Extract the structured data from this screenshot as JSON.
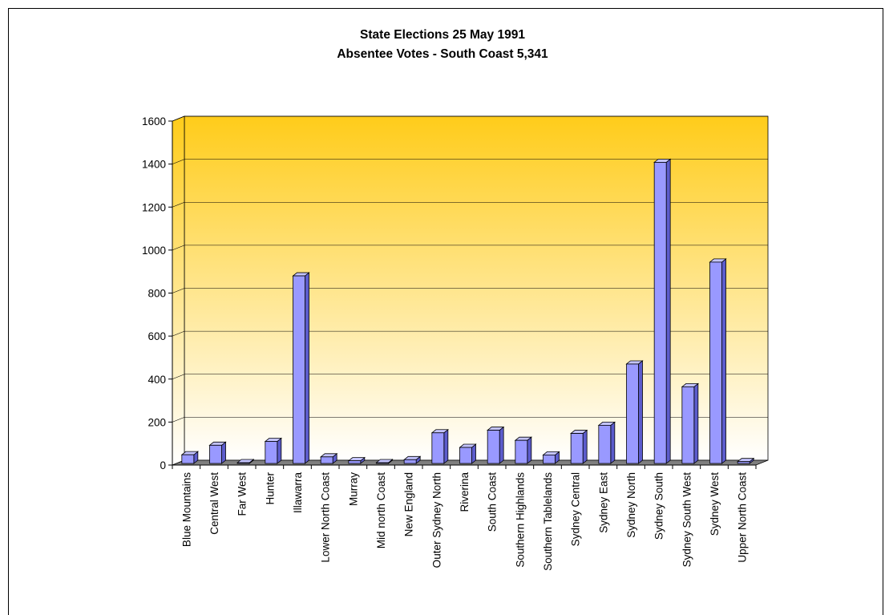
{
  "chart_data": {
    "type": "bar",
    "title": "State Elections 25 May 1991",
    "subtitle": "Absentee Votes - South Coast 5,341",
    "xlabel": "",
    "ylabel": "",
    "ylim": [
      0,
      1600
    ],
    "yticks": [
      0,
      200,
      400,
      600,
      800,
      1000,
      1200,
      1400,
      1600
    ],
    "categories": [
      "Blue Mountains",
      "Central West",
      "Far West",
      "Hunter",
      "Illawarra",
      "Lower North Coast",
      "Murray",
      "Mid north Coast",
      "New England",
      "Outer Sydney North",
      "Riverina",
      "South Coast",
      "Southern Highlands",
      "Southern Tablelands",
      "Sydney Central",
      "Sydney East",
      "Sydney North",
      "Sydney South",
      "Sydney South West",
      "Sydney West",
      "Upper North Coast"
    ],
    "values": [
      48,
      92,
      4,
      110,
      880,
      38,
      20,
      3,
      25,
      150,
      82,
      162,
      115,
      47,
      147,
      185,
      470,
      1408,
      364,
      944,
      16
    ],
    "grid": true,
    "legend": "none",
    "colors": {
      "bar_front": "#9999ff",
      "bar_side": "#5c5ccc",
      "bar_top": "#c4c4ff",
      "bar_edge": "#000000",
      "wall_top": "#ffcc1a",
      "wall_bottom": "#ffffff",
      "floor": "#7f7f7f",
      "grid": "#000000"
    }
  }
}
